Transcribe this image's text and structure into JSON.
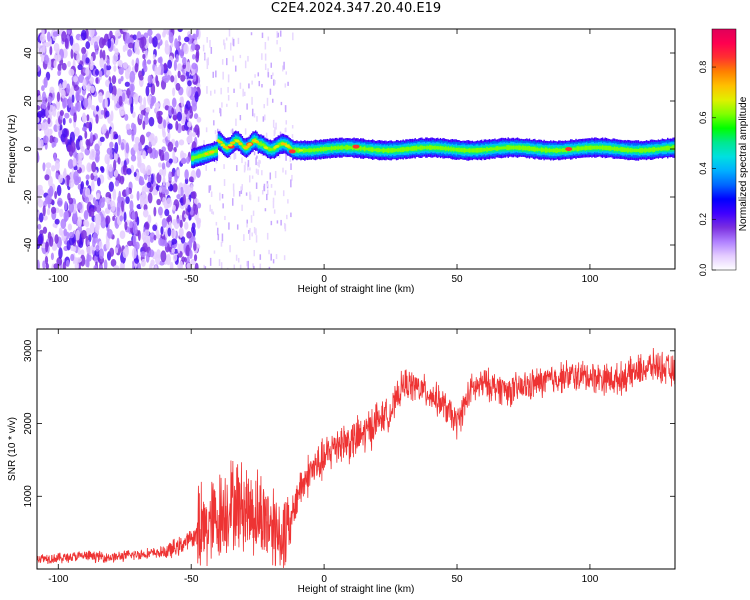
{
  "title": "C2E4.2024.347.20.40.E19",
  "colorbar": {
    "label": "Normalized spectral amplitude",
    "ticks": [
      "0.0",
      "0.2",
      "0.4",
      "0.6",
      "0.8"
    ],
    "range": [
      0,
      0.95
    ],
    "colors": [
      "#ffffff",
      "#e4ccff",
      "#b080ff",
      "#7a2fe0",
      "#3f00ff",
      "#0000ff",
      "#0066ff",
      "#00b0ff",
      "#00e0e0",
      "#00e890",
      "#00ff00",
      "#80ff00",
      "#e0f000",
      "#ffc000",
      "#ff8000",
      "#ff3030",
      "#ff0050",
      "#e0005a"
    ]
  },
  "chart_data": [
    {
      "type": "heatmap",
      "xlabel": "Height of straight line (km)",
      "ylabel": "Frequency (Hz)",
      "xlim": [
        -108,
        132
      ],
      "ylim": [
        -50,
        50
      ],
      "xticks": [
        "-100",
        "-50",
        "0",
        "50",
        "100"
      ],
      "yticks": [
        "-40",
        "-20",
        "0",
        "20",
        "40"
      ],
      "description_values": {
        "noise_region_x": [
          -108,
          -47
        ],
        "signal_band_start_x": -50,
        "signal_band_center_hz": 0,
        "signal_band_halfwidth_hz": 4,
        "peak_amplitude_points": [
          [
            -35,
            1
          ],
          [
            -28,
            2
          ],
          [
            -12,
            -1
          ],
          [
            12,
            1
          ],
          [
            92,
            0
          ]
        ]
      }
    },
    {
      "type": "line",
      "xlabel": "Height of straight line (km)",
      "ylabel": "SNR (10 * v/v)",
      "xlim": [
        -108,
        132
      ],
      "ylim": [
        0,
        3300
      ],
      "xticks": [
        "-100",
        "-50",
        "0",
        "50",
        "100"
      ],
      "yticks": [
        "1000",
        "2000",
        "3000"
      ],
      "series": [
        {
          "color": "#ee3333",
          "x": [
            -108,
            -100,
            -90,
            -80,
            -70,
            -60,
            -55,
            -50,
            -45,
            -40,
            -35,
            -30,
            -25,
            -20,
            -15,
            -13,
            -10,
            -5,
            0,
            5,
            10,
            15,
            20,
            25,
            30,
            35,
            40,
            45,
            50,
            55,
            60,
            70,
            80,
            90,
            100,
            110,
            120,
            125,
            132
          ],
          "y": [
            150,
            150,
            180,
            160,
            200,
            230,
            300,
            420,
            550,
            700,
            900,
            850,
            750,
            650,
            450,
            500,
            1050,
            1350,
            1500,
            1750,
            1750,
            1850,
            2050,
            2150,
            2550,
            2500,
            2400,
            2250,
            2000,
            2450,
            2550,
            2450,
            2550,
            2650,
            2650,
            2600,
            2750,
            2800,
            2700
          ]
        }
      ]
    }
  ]
}
